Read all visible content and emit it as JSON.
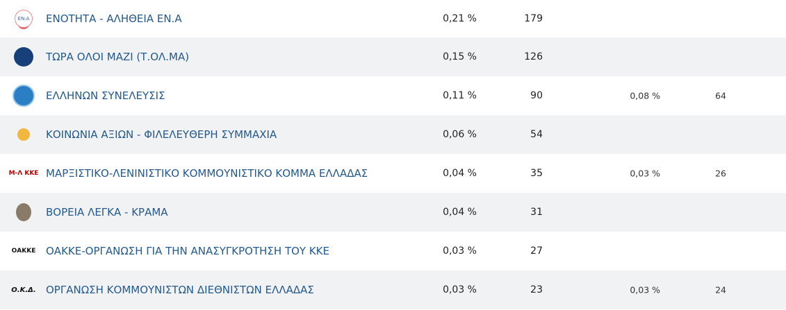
{
  "rows": [
    {
      "name": "ΕΝΟΤΗΤΑ - ΑΛΗΘΕΙΑ ΕΝ.Α",
      "pct": "0,21 %",
      "count": "179",
      "pct2": "",
      "count2": "",
      "logo": "ΕΝ.Α"
    },
    {
      "name": "ΤΩΡΑ ΟΛΟΙ ΜΑΖΙ (Τ.ΟΛ.ΜΑ)",
      "pct": "0,15 %",
      "count": "126",
      "pct2": "",
      "count2": ""
    },
    {
      "name": "ΕΛΛΗΝΩΝ ΣΥΝΕΛΕΥΣΙΣ",
      "pct": "0,11 %",
      "count": "90",
      "pct2": "0,08 %",
      "count2": "64"
    },
    {
      "name": "ΚΟΙΝΩΝΙΑ ΑΞΙΩΝ - ΦΙΛΕΛΕΥΘΕΡΗ ΣΥΜΜΑΧΙΑ",
      "pct": "0,06 %",
      "count": "54",
      "pct2": "",
      "count2": ""
    },
    {
      "name": "ΜΑΡΞΙΣΤΙΚΟ-ΛΕΝΙΝΙΣΤΙΚΟ ΚΟΜΜΟΥΝΙΣΤΙΚΟ ΚΟΜΜΑ ΕΛΛΑΔΑΣ",
      "pct": "0,04 %",
      "count": "35",
      "pct2": "0,03 %",
      "count2": "26",
      "logo": "Μ-Λ ΚΚΕ"
    },
    {
      "name": "ΒΟΡΕΙΑ ΛΕΓΚΑ - ΚΡΑΜΑ",
      "pct": "0,04 %",
      "count": "31",
      "pct2": "",
      "count2": ""
    },
    {
      "name": "ΟΑΚΚΕ-ΟΡΓΑΝΩΣΗ ΓΙΑ ΤΗΝ ΑΝΑΣΥΓΚΡΟΤΗΣΗ ΤΟΥ ΚΚΕ",
      "pct": "0,03 %",
      "count": "27",
      "pct2": "",
      "count2": "",
      "logo": "ΟΑΚΚΕ"
    },
    {
      "name": "ΟΡΓΑΝΩΣΗ ΚΟΜΜΟΥΝΙΣΤΩΝ ΔΙΕΘΝΙΣΤΩΝ ΕΛΛΑΔΑΣ",
      "pct": "0,03 %",
      "count": "23",
      "pct2": "0,03 %",
      "count2": "24",
      "logo": "Ο.Κ.Δ."
    }
  ]
}
